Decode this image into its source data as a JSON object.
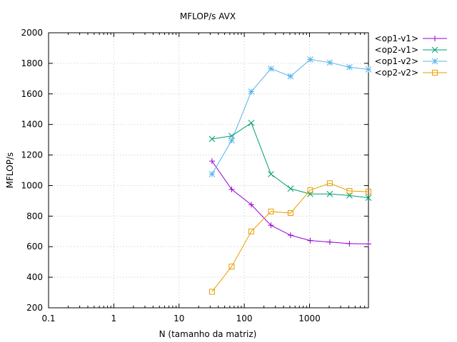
{
  "chart_data": {
    "type": "line",
    "title": "MFLOP/s AVX",
    "xlabel": "N (tamanho da matriz)",
    "ylabel": "MFLOP/s",
    "xscale": "log",
    "xlim": [
      0.1,
      8000
    ],
    "ylim": [
      200,
      2000
    ],
    "xticks": [
      0.1,
      1,
      10,
      100,
      1000
    ],
    "xtick_labels": [
      "0.1",
      "1",
      "10",
      "100",
      "1000"
    ],
    "yticks": [
      200,
      400,
      600,
      800,
      1000,
      1200,
      1400,
      1600,
      1800,
      2000
    ],
    "ytick_labels": [
      "200",
      "400",
      "600",
      "800",
      "1000",
      "1200",
      "1400",
      "1600",
      "1800",
      "2000"
    ],
    "grid": true,
    "legend_position": "outside-top-right",
    "x": [
      32,
      64,
      128,
      256,
      512,
      1024,
      2048,
      4096,
      8192
    ],
    "series": [
      {
        "name": "<op1-v1>",
        "color": "#9400d3",
        "marker": "plus",
        "values": [
          1160,
          975,
          875,
          740,
          675,
          640,
          630,
          620,
          618
        ]
      },
      {
        "name": "<op2-v1>",
        "color": "#009e73",
        "marker": "x",
        "values": [
          1305,
          1325,
          1410,
          1075,
          980,
          945,
          945,
          935,
          920
        ]
      },
      {
        "name": "<op1-v2>",
        "color": "#56b4e9",
        "marker": "star",
        "values": [
          1075,
          1295,
          1615,
          1765,
          1715,
          1825,
          1805,
          1775,
          1760
        ]
      },
      {
        "name": "<op2-v2>",
        "color": "#e69f00",
        "marker": "square",
        "values": [
          305,
          470,
          700,
          830,
          820,
          970,
          1015,
          965,
          960
        ]
      }
    ]
  }
}
